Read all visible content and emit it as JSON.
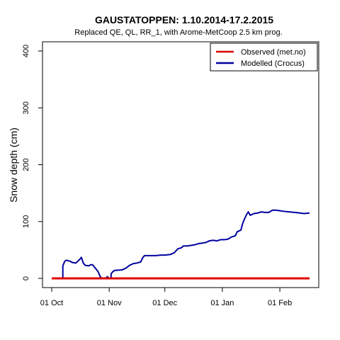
{
  "chart_data": {
    "type": "line",
    "title": "GAUSTATOPPEN: 1.10.2014-17.2.2015",
    "subtitle": "Replaced QE, QL, RR_1,  with Arome-MetCoop 2.5 km prog.",
    "xlabel": "",
    "ylabel": "Snow depth (cm)",
    "xlim": [
      "2014-10-01",
      "2015-02-17"
    ],
    "ylim": [
      0,
      400
    ],
    "x_ticks": [
      {
        "date": "2014-10-01",
        "label": "01 Oct"
      },
      {
        "date": "2014-11-01",
        "label": "01 Nov"
      },
      {
        "date": "2014-12-01",
        "label": "01 Dec"
      },
      {
        "date": "2015-01-01",
        "label": "01 Jan"
      },
      {
        "date": "2015-02-01",
        "label": "01 Feb"
      }
    ],
    "y_ticks": [
      0,
      100,
      200,
      300,
      400
    ],
    "grid": false,
    "legend_position": "top-right",
    "colors": {
      "observed": "#e00000",
      "modelled": "#0000a0"
    },
    "series": [
      {
        "name": "Observed (met.no)",
        "color": "#e00000",
        "points": [
          [
            "2014-10-01",
            0
          ],
          [
            "2015-02-17",
            0
          ]
        ]
      },
      {
        "name": "Modelled (Crocus)",
        "color": "#0000a0",
        "points": [
          [
            "2014-10-01",
            0
          ],
          [
            "2014-10-07",
            0
          ],
          [
            "2014-10-07",
            22
          ],
          [
            "2014-10-08",
            30
          ],
          [
            "2014-10-09",
            32
          ],
          [
            "2014-10-11",
            30
          ],
          [
            "2014-10-12",
            28
          ],
          [
            "2014-10-14",
            27
          ],
          [
            "2014-10-15",
            30
          ],
          [
            "2014-10-16",
            33
          ],
          [
            "2014-10-17",
            37
          ],
          [
            "2014-10-18",
            27
          ],
          [
            "2014-10-19",
            23
          ],
          [
            "2014-10-21",
            22
          ],
          [
            "2014-10-22",
            24
          ],
          [
            "2014-10-23",
            24
          ],
          [
            "2014-10-24",
            20
          ],
          [
            "2014-10-26",
            12
          ],
          [
            "2014-10-27",
            4
          ],
          [
            "2014-10-28",
            0
          ],
          [
            "2014-10-30",
            0
          ],
          [
            "2014-10-31",
            3
          ],
          [
            "2014-11-01",
            0
          ],
          [
            "2014-11-02",
            0
          ],
          [
            "2014-11-02",
            8
          ],
          [
            "2014-11-03",
            12
          ],
          [
            "2014-11-04",
            14
          ],
          [
            "2014-11-08",
            15
          ],
          [
            "2014-11-10",
            18
          ],
          [
            "2014-11-12",
            23
          ],
          [
            "2014-11-14",
            26
          ],
          [
            "2014-11-16",
            27
          ],
          [
            "2014-11-18",
            29
          ],
          [
            "2014-11-19",
            36
          ],
          [
            "2014-11-20",
            40
          ],
          [
            "2014-11-23",
            40
          ],
          [
            "2014-11-26",
            40
          ],
          [
            "2014-11-29",
            41
          ],
          [
            "2014-12-01",
            41
          ],
          [
            "2014-12-04",
            42
          ],
          [
            "2014-12-06",
            45
          ],
          [
            "2014-12-08",
            52
          ],
          [
            "2014-12-10",
            54
          ],
          [
            "2014-12-11",
            57
          ],
          [
            "2014-12-13",
            57
          ],
          [
            "2014-12-15",
            58
          ],
          [
            "2014-12-17",
            59
          ],
          [
            "2014-12-19",
            61
          ],
          [
            "2014-12-21",
            62
          ],
          [
            "2014-12-23",
            63
          ],
          [
            "2014-12-25",
            66
          ],
          [
            "2014-12-27",
            67
          ],
          [
            "2014-12-29",
            66
          ],
          [
            "2014-12-31",
            68
          ],
          [
            "2015-01-02",
            68
          ],
          [
            "2015-01-04",
            69
          ],
          [
            "2015-01-06",
            73
          ],
          [
            "2015-01-08",
            75
          ],
          [
            "2015-01-09",
            82
          ],
          [
            "2015-01-11",
            85
          ],
          [
            "2015-01-12",
            97
          ],
          [
            "2015-01-13",
            105
          ],
          [
            "2015-01-14",
            112
          ],
          [
            "2015-01-15",
            117
          ],
          [
            "2015-01-16",
            111
          ],
          [
            "2015-01-18",
            114
          ],
          [
            "2015-01-20",
            115
          ],
          [
            "2015-01-22",
            117
          ],
          [
            "2015-01-24",
            116
          ],
          [
            "2015-01-26",
            116
          ],
          [
            "2015-01-28",
            120
          ],
          [
            "2015-01-30",
            120
          ],
          [
            "2015-02-01",
            119
          ],
          [
            "2015-02-03",
            118
          ],
          [
            "2015-02-06",
            117
          ],
          [
            "2015-02-09",
            116
          ],
          [
            "2015-02-12",
            115
          ],
          [
            "2015-02-14",
            114
          ],
          [
            "2015-02-17",
            115
          ]
        ]
      }
    ]
  }
}
